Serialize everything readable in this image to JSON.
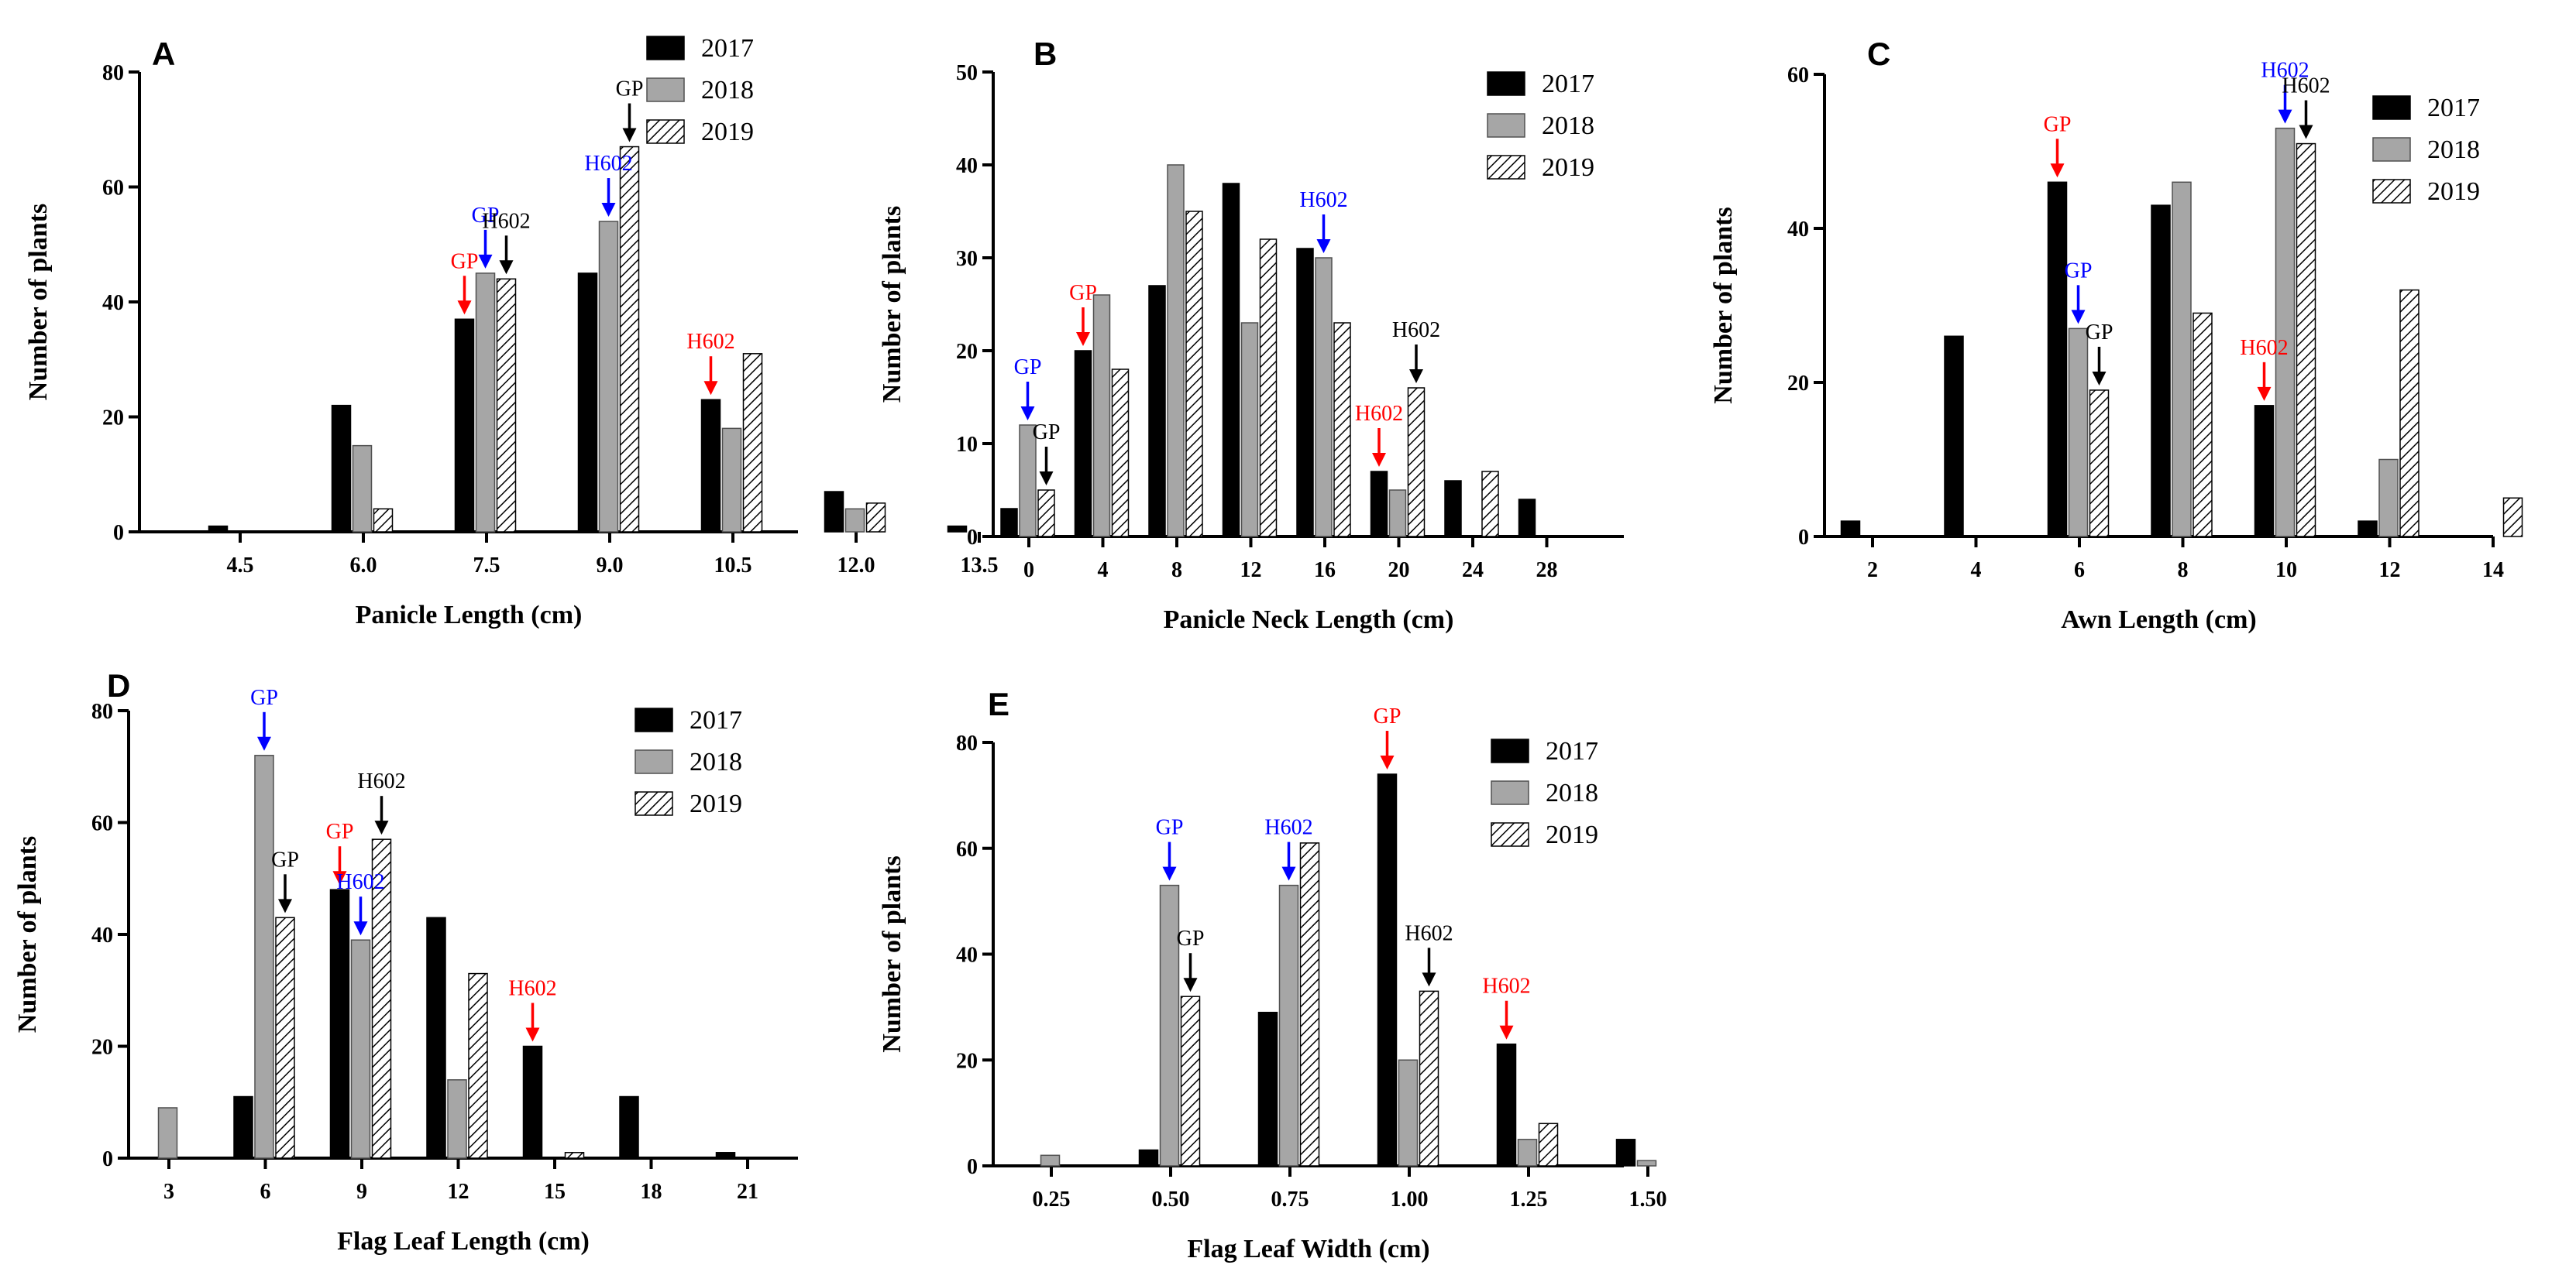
{
  "chart_data": [
    {
      "id": "A",
      "type": "bar",
      "panel_label": "A",
      "xlabel": "Panicle Length (cm)",
      "ylabel": "Number of plants",
      "ylim": [
        0,
        80
      ],
      "yticks": [
        "0",
        "20",
        "40",
        "60",
        "80"
      ],
      "categories": [
        "4.5",
        "6.0",
        "7.5",
        "9.0",
        "10.5",
        "12.0",
        "13.5"
      ],
      "series": [
        {
          "name": "2017",
          "values": [
            1,
            22,
            37,
            45,
            23,
            7,
            1
          ]
        },
        {
          "name": "2018",
          "values": [
            0,
            15,
            45,
            54,
            18,
            4,
            0
          ]
        },
        {
          "name": "2019",
          "values": [
            0,
            4,
            44,
            67,
            31,
            5,
            0
          ]
        }
      ],
      "legend": [
        "2017",
        "2018",
        "2019"
      ],
      "annotations": [
        {
          "text": "GP",
          "color": "#ff0000",
          "category": 2,
          "series": 0
        },
        {
          "text": "GP",
          "color": "#0000ff",
          "category": 2,
          "series": 1
        },
        {
          "text": "H602",
          "color": "#000000",
          "category": 2,
          "series": 2
        },
        {
          "text": "H602",
          "color": "#0000ff",
          "category": 3,
          "series": 1
        },
        {
          "text": "GP",
          "color": "#000000",
          "category": 3,
          "series": 2
        },
        {
          "text": "H602",
          "color": "#ff0000",
          "category": 4,
          "series": 0
        }
      ]
    },
    {
      "id": "B",
      "type": "bar",
      "panel_label": "B",
      "xlabel": "Panicle Neck Length (cm)",
      "ylabel": "Number of plants",
      "ylim": [
        0,
        50
      ],
      "yticks": [
        "0",
        "10",
        "20",
        "30",
        "40",
        "50"
      ],
      "categories": [
        "0",
        "4",
        "8",
        "12",
        "16",
        "20",
        "24",
        "28"
      ],
      "series": [
        {
          "name": "2017",
          "values": [
            3,
            20,
            27,
            38,
            31,
            7,
            6,
            4
          ]
        },
        {
          "name": "2018",
          "values": [
            12,
            26,
            40,
            23,
            30,
            5,
            0,
            0
          ]
        },
        {
          "name": "2019",
          "values": [
            5,
            18,
            35,
            32,
            23,
            16,
            7,
            0
          ]
        }
      ],
      "legend": [
        "2017",
        "2018",
        "2019"
      ],
      "annotations": [
        {
          "text": "GP",
          "color": "#0000ff",
          "category": 0,
          "series": 1
        },
        {
          "text": "GP",
          "color": "#000000",
          "category": 0,
          "series": 2
        },
        {
          "text": "GP",
          "color": "#ff0000",
          "category": 1,
          "series": 0
        },
        {
          "text": "H602",
          "color": "#0000ff",
          "category": 4,
          "series": 1
        },
        {
          "text": "H602",
          "color": "#ff0000",
          "category": 5,
          "series": 0
        },
        {
          "text": "H602",
          "color": "#000000",
          "category": 5,
          "series": 2
        }
      ]
    },
    {
      "id": "C",
      "type": "bar",
      "panel_label": "C",
      "xlabel": "Awn Length (cm)",
      "ylabel": "Number of plants",
      "ylim": [
        0,
        60
      ],
      "yticks": [
        "0",
        "20",
        "40",
        "60"
      ],
      "categories": [
        "2",
        "4",
        "6",
        "8",
        "10",
        "12",
        "14"
      ],
      "series": [
        {
          "name": "2017",
          "values": [
            2,
            26,
            46,
            43,
            17,
            2,
            0
          ]
        },
        {
          "name": "2018",
          "values": [
            0,
            0,
            27,
            46,
            53,
            10,
            0
          ]
        },
        {
          "name": "2019",
          "values": [
            0,
            0,
            19,
            29,
            51,
            32,
            5
          ]
        }
      ],
      "legend": [
        "2017",
        "2018",
        "2019"
      ],
      "annotations": [
        {
          "text": "GP",
          "color": "#ff0000",
          "category": 2,
          "series": 0
        },
        {
          "text": "GP",
          "color": "#0000ff",
          "category": 2,
          "series": 1
        },
        {
          "text": "GP",
          "color": "#000000",
          "category": 2,
          "series": 2
        },
        {
          "text": "H602",
          "color": "#ff0000",
          "category": 4,
          "series": 0
        },
        {
          "text": "H602",
          "color": "#0000ff",
          "category": 4,
          "series": 1
        },
        {
          "text": "H602",
          "color": "#000000",
          "category": 4,
          "series": 2
        }
      ]
    },
    {
      "id": "D",
      "type": "bar",
      "panel_label": "D",
      "xlabel": "Flag Leaf Length (cm)",
      "ylabel": "Number of plants",
      "ylim": [
        0,
        80
      ],
      "yticks": [
        "0",
        "20",
        "40",
        "60",
        "80"
      ],
      "categories": [
        "3",
        "6",
        "9",
        "12",
        "15",
        "18",
        "21"
      ],
      "series": [
        {
          "name": "2017",
          "values": [
            0,
            11,
            48,
            43,
            20,
            11,
            1
          ]
        },
        {
          "name": "2018",
          "values": [
            9,
            72,
            39,
            14,
            0,
            0,
            0
          ]
        },
        {
          "name": "2019",
          "values": [
            0,
            43,
            57,
            33,
            1,
            0,
            0
          ]
        }
      ],
      "legend": [
        "2017",
        "2018",
        "2019"
      ],
      "annotations": [
        {
          "text": "GP",
          "color": "#0000ff",
          "category": 1,
          "series": 1
        },
        {
          "text": "GP",
          "color": "#000000",
          "category": 1,
          "series": 2
        },
        {
          "text": "GP",
          "color": "#ff0000",
          "category": 2,
          "series": 0
        },
        {
          "text": "H602",
          "color": "#0000ff",
          "category": 2,
          "series": 1
        },
        {
          "text": "H602",
          "color": "#000000",
          "category": 2,
          "series": 2
        },
        {
          "text": "H602",
          "color": "#ff0000",
          "category": 4,
          "series": 0
        }
      ]
    },
    {
      "id": "E",
      "type": "bar",
      "panel_label": "E",
      "xlabel": "Flag Leaf Width (cm)",
      "ylabel": "Number of plants",
      "ylim": [
        0,
        80
      ],
      "yticks": [
        "0",
        "20",
        "40",
        "60",
        "80"
      ],
      "categories": [
        "0.25",
        "0.50",
        "0.75",
        "1.00",
        "1.25",
        "1.50"
      ],
      "series": [
        {
          "name": "2017",
          "values": [
            0,
            3,
            29,
            74,
            23,
            5
          ]
        },
        {
          "name": "2018",
          "values": [
            2,
            53,
            53,
            20,
            5,
            1
          ]
        },
        {
          "name": "2019",
          "values": [
            0,
            32,
            61,
            33,
            8,
            0
          ]
        }
      ],
      "legend": [
        "2017",
        "2018",
        "2019"
      ],
      "annotations": [
        {
          "text": "GP",
          "color": "#0000ff",
          "category": 1,
          "series": 1
        },
        {
          "text": "GP",
          "color": "#000000",
          "category": 1,
          "series": 2
        },
        {
          "text": "H602",
          "color": "#0000ff",
          "category": 2,
          "series": 1
        },
        {
          "text": "GP",
          "color": "#ff0000",
          "category": 3,
          "series": 0
        },
        {
          "text": "H602",
          "color": "#000000",
          "category": 3,
          "series": 2
        },
        {
          "text": "H602",
          "color": "#ff0000",
          "category": 4,
          "series": 0
        }
      ]
    }
  ],
  "colors": {
    "series_2017": "#000000",
    "series_2018": "#a6a6a6",
    "series_2019_hatch": "#000000",
    "annotation_red": "#ff0000",
    "annotation_blue": "#0000ff",
    "annotation_black": "#000000"
  }
}
